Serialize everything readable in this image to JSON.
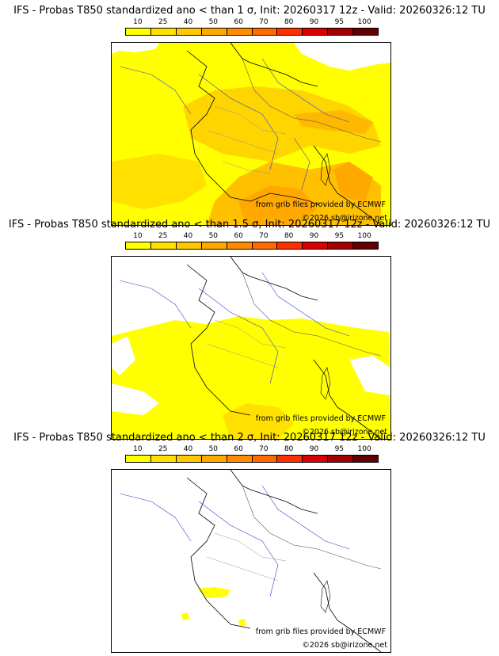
{
  "panels": [
    {
      "title": "IFS - Probas T850  standardized ano < than 1 σ, Init: 20260317 12z - Valid: 20260326:12 TU",
      "source": "from grib files provided by ECMWF",
      "copyright": "©2026 sb@irizone.net"
    },
    {
      "title": "IFS - Probas T850  standardized ano < than 1.5 σ, Init: 20260317 12z - Valid: 20260326:12 TU",
      "source": "from grib files provided by ECMWF",
      "copyright": "©2026 sb@irizone.net"
    },
    {
      "title": "IFS - Probas T850  standardized ano < than 2 σ, Init: 20260317 12z - Valid: 20260326:12 TU",
      "source": "from grib files provided by ECMWF",
      "copyright": "©2026 sb@irizone.net"
    }
  ],
  "legend": {
    "levels": [
      "10",
      "25",
      "40",
      "50",
      "60",
      "70",
      "80",
      "90",
      "95",
      "100"
    ],
    "colors": [
      "#ffff00",
      "#ffe000",
      "#ffc800",
      "#ffa800",
      "#ff8c00",
      "#ff6a00",
      "#ff3000",
      "#d80000",
      "#a00000",
      "#600000"
    ]
  }
}
